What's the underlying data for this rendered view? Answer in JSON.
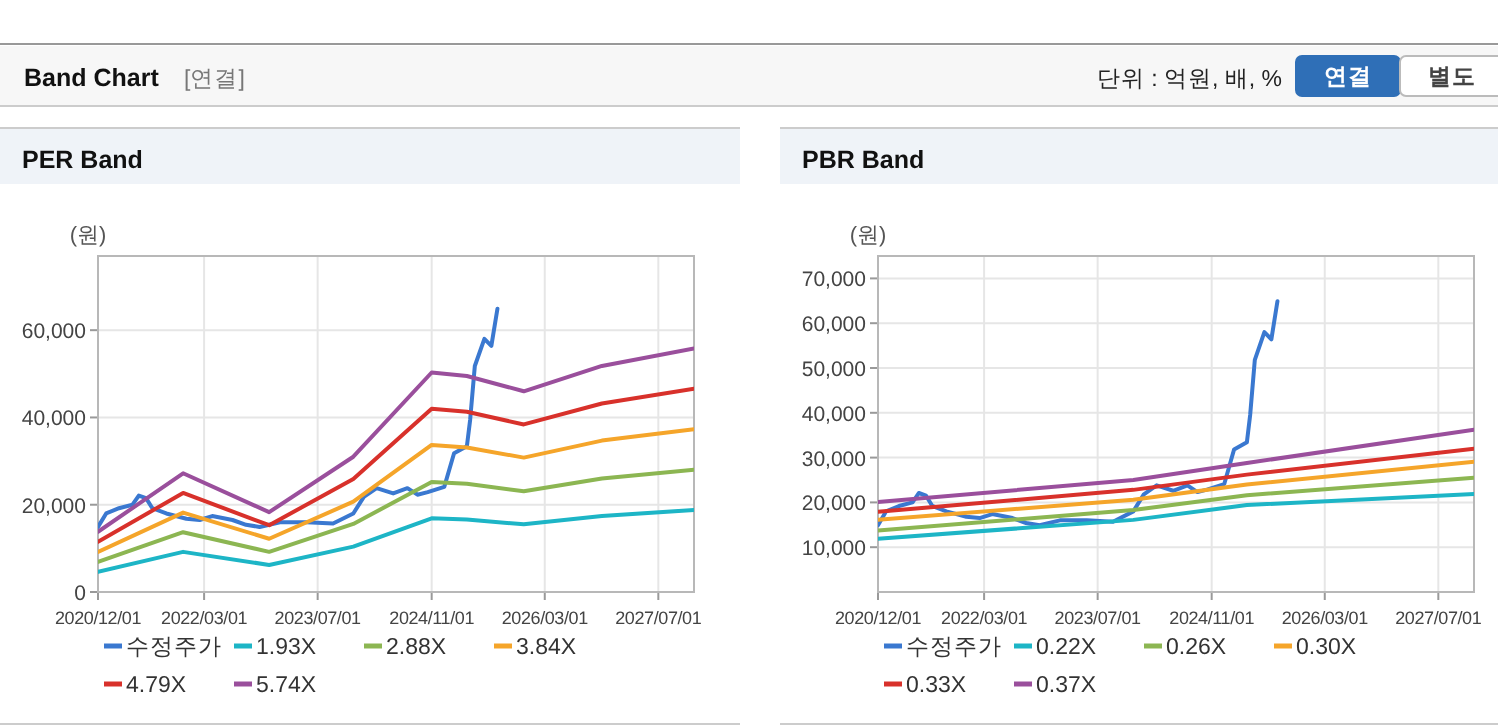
{
  "chart_data": [
    {
      "type": "other",
      "title": "Band Chart",
      "subtitle": "[연결]",
      "annotations": [
        "단위 : 억원, 배, %",
        "연결",
        "별도"
      ]
    },
    {
      "type": "line",
      "title": "PER Band",
      "ylabel": "(원)",
      "xlim": [
        "2020-12-01",
        "2027-12-01"
      ],
      "ylim": [
        0,
        77000
      ],
      "xticks": [
        {
          "value": "2020-12-01",
          "label": "2020/12/01"
        },
        {
          "value": "2022-03-01",
          "label": "2022/03/01"
        },
        {
          "value": "2023-07-01",
          "label": "2023/07/01"
        },
        {
          "value": "2024-11-01",
          "label": "2024/11/01"
        },
        {
          "value": "2026-03-01",
          "label": "2026/03/01"
        },
        {
          "value": "2027-07-01",
          "label": "2027/07/01"
        }
      ],
      "yticks": [
        0,
        {
          "value": 20000,
          "label": "20,000"
        },
        {
          "value": 40000,
          "label": "40,000"
        },
        {
          "value": 60000,
          "label": "60,000"
        }
      ],
      "grid": true,
      "legend": "bottom",
      "line_style": "solid",
      "series": [
        {
          "name": "수정주가",
          "color": "#3a78d0",
          "x": [
            "2020-12-01",
            "2021-01-05",
            "2021-03-01",
            "2021-04-28",
            "2021-05-25",
            "2021-06-25",
            "2021-07-22",
            "2021-09-20",
            "2021-12-15",
            "2022-02-10",
            "2022-04-05",
            "2022-07-01",
            "2022-08-28",
            "2022-10-25",
            "2023-01-20",
            "2023-05-15",
            "2023-09-05",
            "2023-12-01",
            "2024-01-15",
            "2024-03-10",
            "2024-05-20",
            "2024-07-20",
            "2024-09-01",
            "2024-10-15",
            "2024-12-25",
            "2025-02-05",
            "2025-04-01",
            "2025-04-15",
            "2025-05-05",
            "2025-06-15",
            "2025-07-15",
            "2025-08-10"
          ],
          "values": [
            14900,
            18000,
            19200,
            20000,
            22100,
            21500,
            19200,
            18000,
            16800,
            16500,
            17400,
            16500,
            15400,
            14900,
            16000,
            16000,
            15700,
            18000,
            21800,
            23800,
            22600,
            23800,
            22300,
            22900,
            24100,
            31800,
            33400,
            39500,
            51800,
            58000,
            56400,
            64900
          ]
        },
        {
          "name": "1.93X",
          "color": "#1db5c6",
          "x": [
            "2020-12-01",
            "2021-12-01",
            "2022-12-05",
            "2023-12-01",
            "2024-11-01",
            "2025-04-01",
            "2025-12-01",
            "2026-11-01",
            "2027-12-01"
          ],
          "values": [
            4600,
            9200,
            6200,
            10400,
            16900,
            16600,
            15500,
            17400,
            18800
          ]
        },
        {
          "name": "2.88X",
          "color": "#8cb652",
          "x": [
            "2020-12-01",
            "2021-12-01",
            "2022-12-05",
            "2023-12-01",
            "2024-11-01",
            "2025-04-01",
            "2025-12-01",
            "2026-11-01",
            "2027-12-01"
          ],
          "values": [
            6900,
            13700,
            9200,
            15600,
            25200,
            24800,
            23100,
            26000,
            28000
          ]
        },
        {
          "name": "3.84X",
          "color": "#f5a52a",
          "x": [
            "2020-12-01",
            "2021-12-01",
            "2022-12-05",
            "2023-12-01",
            "2024-11-01",
            "2025-04-01",
            "2025-12-01",
            "2026-11-01",
            "2027-12-01"
          ],
          "values": [
            9200,
            18200,
            12200,
            20700,
            33700,
            33100,
            30800,
            34700,
            37300
          ]
        },
        {
          "name": "4.79X",
          "color": "#d8312b",
          "x": [
            "2020-12-01",
            "2021-12-01",
            "2022-12-05",
            "2023-12-01",
            "2024-11-01",
            "2025-04-01",
            "2025-12-01",
            "2026-11-01",
            "2027-12-01"
          ],
          "values": [
            11500,
            22700,
            15300,
            25900,
            42000,
            41300,
            38400,
            43200,
            46600
          ]
        },
        {
          "name": "5.74X",
          "color": "#9a4f9c",
          "x": [
            "2020-12-01",
            "2021-12-01",
            "2022-12-05",
            "2023-12-01",
            "2024-11-01",
            "2025-04-01",
            "2025-12-01",
            "2026-11-01",
            "2027-12-01"
          ],
          "values": [
            13800,
            27200,
            18300,
            31000,
            50300,
            49500,
            46000,
            51800,
            55800
          ]
        }
      ]
    },
    {
      "type": "line",
      "title": "PBR Band",
      "ylabel": "(원)",
      "xlim": [
        "2020-12-01",
        "2027-12-01"
      ],
      "ylim": [
        0,
        75000
      ],
      "xticks": [
        {
          "value": "2020-12-01",
          "label": "2020/12/01"
        },
        {
          "value": "2022-03-01",
          "label": "2022/03/01"
        },
        {
          "value": "2023-07-01",
          "label": "2023/07/01"
        },
        {
          "value": "2024-11-01",
          "label": "2024/11/01"
        },
        {
          "value": "2026-03-01",
          "label": "2026/03/01"
        },
        {
          "value": "2027-07-01",
          "label": "2027/07/01"
        }
      ],
      "yticks": [
        {
          "value": 10000,
          "label": "10,000"
        },
        {
          "value": 20000,
          "label": "20,000"
        },
        {
          "value": 30000,
          "label": "30,000"
        },
        {
          "value": 40000,
          "label": "40,000"
        },
        {
          "value": 50000,
          "label": "50,000"
        },
        {
          "value": 60000,
          "label": "60,000"
        },
        {
          "value": 70000,
          "label": "70,000"
        }
      ],
      "grid": true,
      "legend": "bottom",
      "line_style": "solid",
      "series": [
        {
          "name": "수정주가",
          "color": "#3a78d0",
          "x": [
            "2020-12-01",
            "2021-01-05",
            "2021-03-01",
            "2021-04-28",
            "2021-05-25",
            "2021-06-25",
            "2021-07-22",
            "2021-09-20",
            "2021-12-15",
            "2022-02-10",
            "2022-04-05",
            "2022-07-01",
            "2022-08-28",
            "2022-10-25",
            "2023-01-20",
            "2023-05-15",
            "2023-09-05",
            "2023-12-01",
            "2024-01-15",
            "2024-03-10",
            "2024-05-20",
            "2024-07-20",
            "2024-09-01",
            "2024-10-15",
            "2024-12-25",
            "2025-02-05",
            "2025-04-01",
            "2025-04-15",
            "2025-05-05",
            "2025-06-15",
            "2025-07-15",
            "2025-08-10"
          ],
          "values": [
            14900,
            18000,
            19200,
            20000,
            22100,
            21500,
            19200,
            18000,
            16800,
            16500,
            17400,
            16500,
            15400,
            14900,
            16000,
            16000,
            15700,
            18000,
            21800,
            23800,
            22600,
            23800,
            22300,
            22900,
            24100,
            31800,
            33400,
            39500,
            51800,
            58000,
            56400,
            64900
          ]
        },
        {
          "name": "0.22X",
          "color": "#1db5c6",
          "x": [
            "2020-12-01",
            "2023-12-01",
            "2025-04-01",
            "2027-12-01"
          ],
          "values": [
            11900,
            16100,
            19400,
            21900
          ]
        },
        {
          "name": "0.26X",
          "color": "#8cb652",
          "x": [
            "2020-12-01",
            "2023-12-01",
            "2025-04-01",
            "2027-12-01"
          ],
          "values": [
            13700,
            18300,
            21600,
            25500
          ]
        },
        {
          "name": "0.30X",
          "color": "#f5a52a",
          "x": [
            "2020-12-01",
            "2023-12-01",
            "2025-04-01",
            "2027-12-01"
          ],
          "values": [
            16100,
            20600,
            24000,
            29100
          ]
        },
        {
          "name": "0.33X",
          "color": "#d8312b",
          "x": [
            "2020-12-01",
            "2023-12-01",
            "2025-04-01",
            "2027-12-01"
          ],
          "values": [
            17900,
            22800,
            26200,
            32000
          ]
        },
        {
          "name": "0.37X",
          "color": "#9a4f9c",
          "x": [
            "2020-12-01",
            "2023-12-01",
            "2025-04-01",
            "2027-12-01"
          ],
          "values": [
            20100,
            25000,
            28800,
            36200
          ]
        }
      ]
    }
  ]
}
